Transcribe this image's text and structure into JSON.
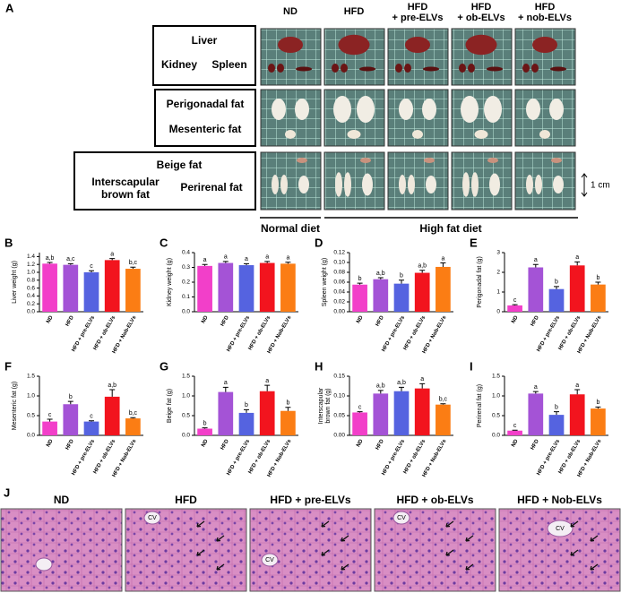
{
  "panel_a": {
    "label": "A",
    "columns": [
      [
        "ND"
      ],
      [
        "HFD"
      ],
      [
        "HFD",
        "+ pre-ELVs"
      ],
      [
        "HFD",
        "+ ob-ELVs"
      ],
      [
        "HFD",
        "+ nob-ELVs"
      ]
    ],
    "organs": [
      "Liver",
      "Kidney",
      "Spleen",
      "Perigonadal fat",
      "Mesenteric fat",
      "Beige fat",
      [
        "Interscapular",
        "brown fat"
      ],
      "Perirenal fat"
    ],
    "scale": "1 cm",
    "diets": [
      "Normal diet",
      "High fat diet"
    ]
  },
  "chart_data": [
    {
      "type": "bar",
      "panel": "B",
      "ylabel": "Liver weight (g)",
      "categories": [
        "ND",
        "HFD",
        "HFD + pre-ELVs",
        "HFD + ob-ELVs",
        "HFD + Nob-ELVs"
      ],
      "colors": [
        "#f23fc9",
        "#a453d6",
        "#5563e0",
        "#f2141e",
        "#fb7d14"
      ],
      "values": [
        1.22,
        1.19,
        1.0,
        1.31,
        1.09
      ],
      "errors": [
        0.03,
        0.03,
        0.04,
        0.04,
        0.04
      ],
      "annotations": [
        "a,b",
        "a,c",
        "c",
        "a",
        "b,c"
      ],
      "ylim": [
        0,
        1.5
      ],
      "yticks": [
        {
          "value": 0,
          "label": "0.0"
        },
        0.2,
        0.4,
        0.6,
        0.8,
        {
          "value": 1,
          "label": "1.0"
        },
        1.2,
        1.4
      ]
    },
    {
      "type": "bar",
      "panel": "C",
      "ylabel": "Kidney weight (g)",
      "categories": [
        "ND",
        "HFD",
        "HFD + pre-ELVs",
        "HFD + ob-ELVs",
        "HFD + Nob-ELVs"
      ],
      "colors": [
        "#f23fc9",
        "#a453d6",
        "#5563e0",
        "#f2141e",
        "#fb7d14"
      ],
      "values": [
        0.31,
        0.33,
        0.315,
        0.33,
        0.325
      ],
      "errors": [
        0.01,
        0.01,
        0.01,
        0.01,
        0.01
      ],
      "annotations": [
        "a",
        "a",
        "a",
        "a",
        "a"
      ],
      "ylim": [
        0,
        0.4
      ],
      "yticks": [
        {
          "value": 0,
          "label": "0.0"
        },
        0.1,
        0.2,
        0.3,
        0.4
      ]
    },
    {
      "type": "bar",
      "panel": "D",
      "ylabel": "Spleen weight (g)",
      "categories": [
        "ND",
        "HFD",
        "HFD + pre-ELVs",
        "HFD + ob-ELVs",
        "HFD + Nob-ELVs"
      ],
      "colors": [
        "#f23fc9",
        "#a453d6",
        "#5563e0",
        "#f2141e",
        "#fb7d14"
      ],
      "values": [
        0.055,
        0.066,
        0.057,
        0.079,
        0.091
      ],
      "errors": [
        0.003,
        0.003,
        0.007,
        0.005,
        0.008
      ],
      "annotations": [
        "b",
        "a,b",
        "b",
        "a,b",
        "a"
      ],
      "ylim": [
        0,
        0.12
      ],
      "yticks": [
        {
          "value": 0,
          "label": "0.00"
        },
        0.02,
        0.04,
        0.06,
        0.08,
        {
          "value": 0.1,
          "label": "0.10"
        },
        0.12
      ]
    },
    {
      "type": "bar",
      "panel": "E",
      "ylabel": "Perigonadal fat (g)",
      "categories": [
        "ND",
        "HFD",
        "HFD + pre-ELVs",
        "HFD + ob-ELVs",
        "HFD + Nob-ELVs"
      ],
      "colors": [
        "#f23fc9",
        "#a453d6",
        "#5563e0",
        "#f2141e",
        "#fb7d14"
      ],
      "values": [
        0.32,
        2.25,
        1.15,
        2.35,
        1.38
      ],
      "errors": [
        0.04,
        0.15,
        0.13,
        0.18,
        0.12
      ],
      "annotations": [
        "c",
        "a",
        "b",
        "a",
        "b"
      ],
      "ylim": [
        0,
        3
      ],
      "yticks": [
        0,
        1,
        2,
        3
      ]
    },
    {
      "type": "bar",
      "panel": "F",
      "ylabel": "Mesenteric fat (g)",
      "categories": [
        "ND",
        "HFD",
        "HFD + pre-ELVs",
        "HFD + ob-ELVs",
        "HFD + Nob-ELVs"
      ],
      "colors": [
        "#f23fc9",
        "#a453d6",
        "#5563e0",
        "#f2141e",
        "#fb7d14"
      ],
      "values": [
        0.35,
        0.79,
        0.35,
        0.98,
        0.43
      ],
      "errors": [
        0.06,
        0.07,
        0.02,
        0.18,
        0.02
      ],
      "annotations": [
        "c",
        "b",
        "c",
        "a,b",
        "b,c"
      ],
      "ylim": [
        0,
        1.5
      ],
      "yticks": [
        {
          "value": 0,
          "label": "0.0"
        },
        0.5,
        {
          "value": 1,
          "label": "1.0"
        },
        1.5
      ]
    },
    {
      "type": "bar",
      "panel": "G",
      "ylabel": "Beige fat (g)",
      "categories": [
        "ND",
        "HFD",
        "HFD + pre-ELVs",
        "HFD + ob-ELVs",
        "HFD + Nob-ELVs"
      ],
      "colors": [
        "#f23fc9",
        "#a453d6",
        "#5563e0",
        "#f2141e",
        "#fb7d14"
      ],
      "values": [
        0.17,
        1.1,
        0.57,
        1.12,
        0.62
      ],
      "errors": [
        0.02,
        0.12,
        0.08,
        0.15,
        0.09
      ],
      "annotations": [
        "b",
        "a",
        "b",
        "a",
        "b"
      ],
      "ylim": [
        0,
        1.5
      ],
      "yticks": [
        {
          "value": 0,
          "label": "0.0"
        },
        0.5,
        {
          "value": 1,
          "label": "1.0"
        },
        1.5
      ]
    },
    {
      "type": "bar",
      "panel": "H",
      "ylabel": [
        "Interscapular",
        "brown fat (g)"
      ],
      "categories": [
        "ND",
        "HFD",
        "HFD + pre-ELVs",
        "HFD + ob-ELVs",
        "HFD + Nob-ELVs"
      ],
      "colors": [
        "#f23fc9",
        "#a453d6",
        "#5563e0",
        "#f2141e",
        "#fb7d14"
      ],
      "values": [
        0.058,
        0.106,
        0.112,
        0.119,
        0.078
      ],
      "errors": [
        0.002,
        0.008,
        0.01,
        0.012,
        0.002
      ],
      "annotations": [
        "c",
        "a,b",
        "a,b",
        "a",
        "b,c"
      ],
      "ylim": [
        0,
        0.15
      ],
      "yticks": [
        {
          "value": 0,
          "label": "0.00"
        },
        0.05,
        {
          "value": 0.1,
          "label": "0.10"
        },
        0.15
      ]
    },
    {
      "type": "bar",
      "panel": "I",
      "ylabel": "Perirenal fat (g)",
      "categories": [
        "ND",
        "HFD",
        "HFD + pre-ELVs",
        "HFD + ob-ELVs",
        "HFD + Nob-ELVs"
      ],
      "colors": [
        "#f23fc9",
        "#a453d6",
        "#5563e0",
        "#f2141e",
        "#fb7d14"
      ],
      "values": [
        0.12,
        1.06,
        0.52,
        1.04,
        0.68
      ],
      "errors": [
        0.01,
        0.05,
        0.08,
        0.12,
        0.04
      ],
      "annotations": [
        "c",
        "a",
        "b",
        "a",
        "b"
      ],
      "ylim": [
        0,
        1.5
      ],
      "yticks": [
        {
          "value": 0,
          "label": "0.0"
        },
        0.5,
        {
          "value": 1,
          "label": "1.0"
        },
        1.5
      ]
    }
  ],
  "panel_j": {
    "label": "J",
    "titles": [
      "ND",
      "HFD",
      "HFD + pre-ELVs",
      "HFD + ob-ELVs",
      "HFD + Nob-ELVs"
    ],
    "cv_labels": [
      "CV",
      "CV",
      "CV",
      "CV"
    ]
  }
}
